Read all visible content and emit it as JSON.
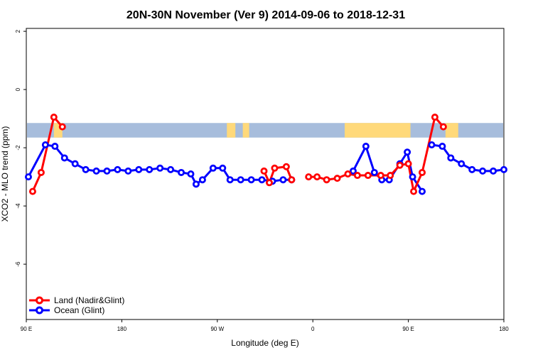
{
  "chart_data": {
    "type": "line",
    "title": "20N-30N November (Ver 9)   2014-09-06 to 2018-12-31",
    "xlabel": "Longitude (deg E)",
    "ylabel": "XCO2 - MLO trend (ppm)",
    "xlim": [
      90,
      540
    ],
    "ylim": [
      -7.9,
      2.1
    ],
    "xticks": [
      {
        "value": 90,
        "label": "90 E"
      },
      {
        "value": 180,
        "label": "180"
      },
      {
        "value": 270,
        "label": "90 W"
      },
      {
        "value": 360,
        "label": "0"
      },
      {
        "value": 450,
        "label": "90 E"
      },
      {
        "value": 540,
        "label": "180"
      }
    ],
    "yticks": [
      {
        "value": 2,
        "label": "2"
      },
      {
        "value": 0,
        "label": "0"
      },
      {
        "value": -2,
        "label": "-2"
      },
      {
        "value": -4,
        "label": "-4"
      },
      {
        "value": -6,
        "label": "-6"
      }
    ],
    "map_strip": {
      "lat_range_ppm": [
        -1.15,
        -1.65
      ],
      "ocean_color": "#a7bddc",
      "land_color": "#ffd97a"
    },
    "series": [
      {
        "name": "Land (Nadir&Glint)",
        "color": "#ff0000",
        "segments": [
          [
            [
              96,
              -3.5
            ],
            [
              104,
              -2.85
            ],
            [
              116,
              -0.95
            ],
            [
              124,
              -1.28
            ]
          ],
          [
            [
              314,
              -2.8
            ],
            [
              319,
              -3.2
            ],
            [
              324,
              -2.7
            ],
            [
              335,
              -2.65
            ],
            [
              340,
              -3.1
            ]
          ],
          [
            [
              356,
              -3.0
            ],
            [
              364,
              -3.0
            ],
            [
              373,
              -3.1
            ],
            [
              383,
              -3.05
            ],
            [
              393,
              -2.9
            ],
            [
              402,
              -2.95
            ],
            [
              412,
              -2.95
            ],
            [
              424,
              -2.95
            ],
            [
              433,
              -2.95
            ],
            [
              442,
              -2.6
            ],
            [
              450,
              -2.55
            ],
            [
              455,
              -3.5
            ],
            [
              463,
              -2.85
            ],
            [
              475,
              -0.95
            ],
            [
              483,
              -1.28
            ]
          ]
        ]
      },
      {
        "name": "Ocean (Glint)",
        "color": "#0000ff",
        "segments": [
          [
            [
              92,
              -3.0
            ],
            [
              108,
              -1.9
            ],
            [
              117,
              -1.95
            ],
            [
              126,
              -2.35
            ],
            [
              136,
              -2.55
            ],
            [
              146,
              -2.75
            ],
            [
              156,
              -2.8
            ],
            [
              166,
              -2.8
            ],
            [
              176,
              -2.75
            ],
            [
              186,
              -2.8
            ],
            [
              196,
              -2.75
            ],
            [
              206,
              -2.75
            ],
            [
              216,
              -2.7
            ],
            [
              226,
              -2.75
            ],
            [
              236,
              -2.85
            ],
            [
              245,
              -2.9
            ],
            [
              250,
              -3.25
            ],
            [
              256,
              -3.1
            ],
            [
              266,
              -2.7
            ],
            [
              275,
              -2.7
            ],
            [
              282,
              -3.1
            ],
            [
              292,
              -3.1
            ],
            [
              302,
              -3.1
            ],
            [
              312,
              -3.1
            ],
            [
              322,
              -3.15
            ],
            [
              332,
              -3.1
            ],
            [
              340,
              -3.1
            ]
          ],
          [
            [
              398,
              -2.8
            ],
            [
              410,
              -1.95
            ],
            [
              418,
              -2.85
            ],
            [
              425,
              -3.1
            ],
            [
              432,
              -3.1
            ],
            [
              442,
              -2.55
            ],
            [
              449,
              -2.15
            ],
            [
              454,
              -3.0
            ],
            [
              463,
              -3.5
            ]
          ],
          [
            [
              472,
              -1.9
            ],
            [
              482,
              -1.95
            ],
            [
              490,
              -2.35
            ],
            [
              500,
              -2.55
            ],
            [
              510,
              -2.75
            ],
            [
              520,
              -2.8
            ],
            [
              530,
              -2.8
            ],
            [
              540,
              -2.75
            ]
          ]
        ]
      }
    ],
    "legend": {
      "placement": "bottom-left",
      "entries": [
        "Land (Nadir&Glint)",
        "Ocean (Glint)"
      ]
    }
  }
}
